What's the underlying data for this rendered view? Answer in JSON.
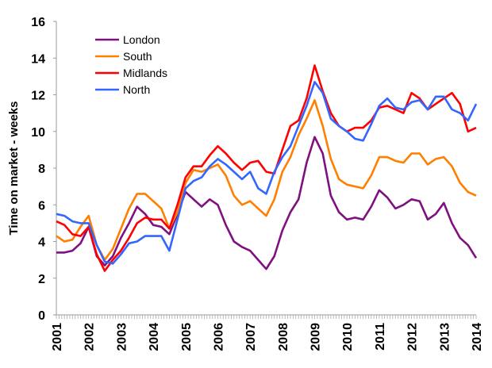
{
  "chart_data": {
    "type": "line",
    "title": "",
    "xlabel": "",
    "ylabel": "Time on market - weeks",
    "xlim": [
      2001,
      2014
    ],
    "ylim": [
      0,
      16
    ],
    "yticks": [
      0,
      2,
      4,
      6,
      8,
      10,
      12,
      14,
      16
    ],
    "xticks": [
      2001,
      2002,
      2003,
      2004,
      2005,
      2006,
      2007,
      2008,
      2009,
      2010,
      2011,
      2012,
      2013,
      2014
    ],
    "grid": false,
    "legend_position": "top-left",
    "x_step_years": 0.25,
    "series": [
      {
        "name": "London",
        "color": "#7F1080",
        "values": [
          3.4,
          3.4,
          3.5,
          3.9,
          4.8,
          3.2,
          2.7,
          3.2,
          4.2,
          5.0,
          5.9,
          5.5,
          4.9,
          4.8,
          4.4,
          5.5,
          6.7,
          6.3,
          5.9,
          6.3,
          6.0,
          4.9,
          4.0,
          3.7,
          3.5,
          3.0,
          2.5,
          3.2,
          4.6,
          5.6,
          6.3,
          8.3,
          9.7,
          8.8,
          6.5,
          5.6,
          5.2,
          5.3,
          5.2,
          5.9,
          6.8,
          6.4,
          5.8,
          6.0,
          6.3,
          6.2,
          5.2,
          5.5,
          6.1,
          5.0,
          4.2,
          3.8,
          3.1
        ]
      },
      {
        "name": "South",
        "color": "#FF7F00",
        "values": [
          4.3,
          4.0,
          4.1,
          4.8,
          5.4,
          3.8,
          3.0,
          3.6,
          4.7,
          5.8,
          6.6,
          6.6,
          6.2,
          5.8,
          4.7,
          5.6,
          7.2,
          7.9,
          7.8,
          8.0,
          8.2,
          7.6,
          6.5,
          6.0,
          6.2,
          5.8,
          5.4,
          6.3,
          7.8,
          8.6,
          9.8,
          10.7,
          11.7,
          10.3,
          8.5,
          7.4,
          7.1,
          7.0,
          6.9,
          7.6,
          8.6,
          8.6,
          8.4,
          8.3,
          8.8,
          8.8,
          8.2,
          8.5,
          8.6,
          8.1,
          7.2,
          6.7,
          6.5
        ]
      },
      {
        "name": "Midlands",
        "color": "#FF0000",
        "values": [
          5.1,
          4.9,
          4.4,
          4.3,
          4.8,
          3.3,
          2.4,
          3.0,
          3.5,
          4.2,
          5.0,
          5.3,
          5.2,
          5.2,
          4.7,
          6.0,
          7.5,
          8.1,
          8.1,
          8.7,
          9.2,
          8.8,
          8.3,
          7.9,
          8.3,
          8.4,
          7.8,
          7.7,
          9.0,
          10.3,
          10.6,
          11.8,
          13.6,
          12.2,
          11.0,
          10.3,
          10.0,
          10.2,
          10.2,
          10.6,
          11.3,
          11.4,
          11.2,
          11.0,
          12.1,
          11.8,
          11.2,
          11.5,
          11.8,
          12.1,
          11.5,
          10.0,
          10.2
        ]
      },
      {
        "name": "North",
        "color": "#3366FF",
        "values": [
          5.5,
          5.4,
          5.1,
          5.0,
          5.0,
          3.8,
          2.9,
          2.8,
          3.3,
          3.9,
          4.0,
          4.3,
          4.3,
          4.3,
          3.5,
          5.2,
          6.9,
          7.3,
          7.5,
          8.1,
          8.5,
          8.2,
          7.8,
          7.4,
          7.8,
          6.9,
          6.6,
          7.8,
          8.6,
          9.2,
          10.3,
          11.4,
          12.7,
          12.1,
          10.7,
          10.3,
          10.0,
          9.6,
          9.5,
          10.4,
          11.4,
          11.8,
          11.3,
          11.2,
          11.6,
          11.7,
          11.2,
          11.9,
          11.9,
          11.2,
          11.0,
          10.6,
          11.5
        ]
      }
    ]
  }
}
